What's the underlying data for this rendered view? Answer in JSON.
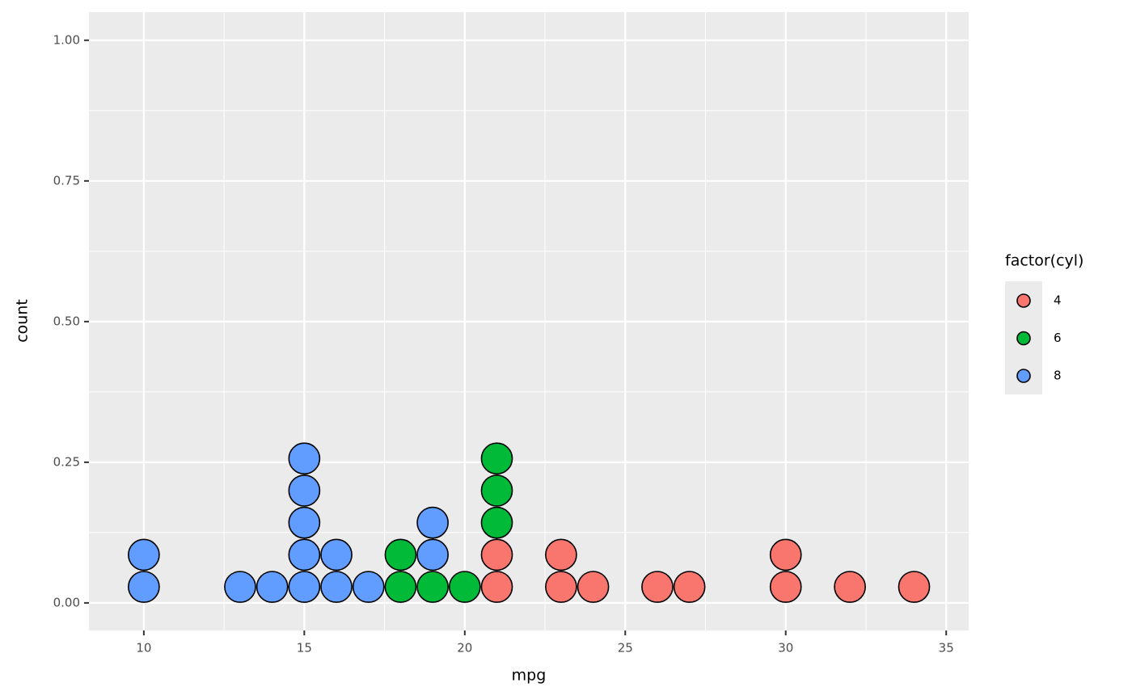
{
  "chart_data": {
    "type": "dotplot",
    "x_label": "mpg",
    "y_label": "count",
    "legend_title": "factor(cyl)",
    "legend_position": "right",
    "grid": true,
    "background": "#ebebeb",
    "xlim": [
      8.29,
      35.7
    ],
    "xticks": [
      10,
      15,
      20,
      25,
      30,
      35
    ],
    "ylim": [
      -0.049,
      1.05
    ],
    "yticks": [
      {
        "value": 0,
        "label": "0.00"
      },
      {
        "value": 0.25,
        "label": "0.25"
      },
      {
        "value": 0.5,
        "label": "0.50"
      },
      {
        "value": 0.75,
        "label": "0.75"
      },
      {
        "value": 1,
        "label": "1.00"
      }
    ],
    "series": [
      {
        "name": "4",
        "color": "#f8766d",
        "x": [
          21,
          21,
          23,
          23,
          24,
          26,
          27,
          30,
          30,
          32,
          34
        ]
      },
      {
        "name": "6",
        "color": "#00ba38",
        "x": [
          18,
          18,
          19,
          20,
          21,
          21,
          21
        ]
      },
      {
        "name": "8",
        "color": "#619cff",
        "x": [
          10,
          10,
          13,
          14,
          15,
          15,
          15,
          15,
          15,
          16,
          16,
          17,
          19,
          19
        ]
      }
    ]
  }
}
